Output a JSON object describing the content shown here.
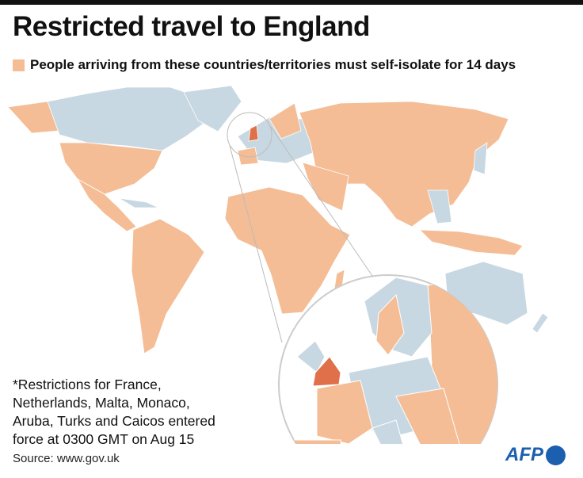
{
  "title": "Restricted travel to England",
  "legend": "People arriving from these countries/territories must self-isolate for 14 days",
  "footnote": {
    "lines": [
      "*Restrictions for France,",
      "Netherlands, Malta, Monaco,",
      "Aruba, Turks and Caicos entered",
      "force at 0300 GMT on Aug 15"
    ]
  },
  "source": "Source: www.gov.uk",
  "logo": "AFP"
}
